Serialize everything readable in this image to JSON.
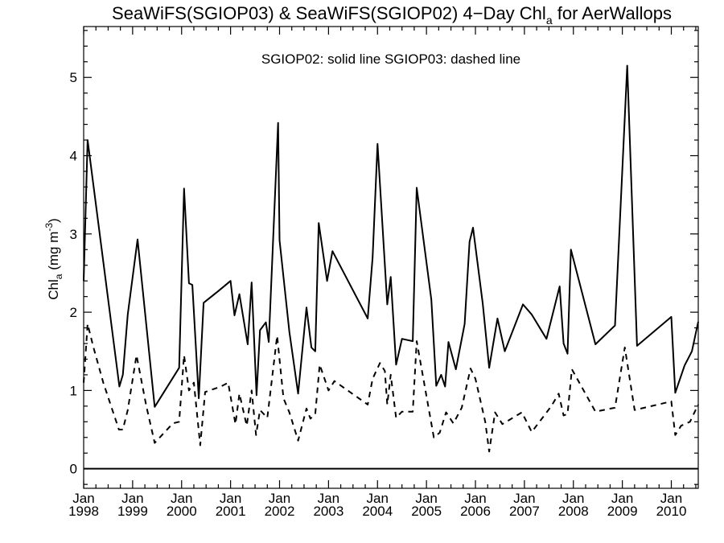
{
  "chart_data": {
    "type": "line",
    "title": {
      "main": "SeaWiFS(SGIOP03) & SeaWiFS(SGIOP02) 4−Day Chl",
      "sub": "a",
      "tail": " for AerWallops"
    },
    "legend_text": "SGIOP02: solid line   SGIOP03: dashed line",
    "ylabel": {
      "chl": "Chl",
      "chl_sub": "a",
      "unit_open": " (mg m",
      "unit_sup": "-3",
      "unit_close": ")"
    },
    "xlim": [
      1998.0,
      2010.55
    ],
    "ylim": [
      -0.25,
      5.65
    ],
    "y_ticks": [
      0,
      1,
      2,
      3,
      4,
      5
    ],
    "x_ticks": [
      {
        "value": 1998,
        "month": "Jan",
        "year": "1998"
      },
      {
        "value": 1999,
        "month": "Jan",
        "year": "1999"
      },
      {
        "value": 2000,
        "month": "Jan",
        "year": "2000"
      },
      {
        "value": 2001,
        "month": "Jan",
        "year": "2001"
      },
      {
        "value": 2002,
        "month": "Jan",
        "year": "2002"
      },
      {
        "value": 2003,
        "month": "Jan",
        "year": "2003"
      },
      {
        "value": 2004,
        "month": "Jan",
        "year": "2004"
      },
      {
        "value": 2005,
        "month": "Jan",
        "year": "2005"
      },
      {
        "value": 2006,
        "month": "Jan",
        "year": "2006"
      },
      {
        "value": 2007,
        "month": "Jan",
        "year": "2007"
      },
      {
        "value": 2008,
        "month": "Jan",
        "year": "2008"
      },
      {
        "value": 2009,
        "month": "Jan",
        "year": "2009"
      },
      {
        "value": 2010,
        "month": "Jan",
        "year": "2010"
      }
    ],
    "reference_line": 0,
    "series": [
      {
        "style": "solid",
        "points": [
          [
            1998.0,
            2.4
          ],
          [
            1998.08,
            4.2
          ],
          [
            1998.73,
            1.05
          ],
          [
            1998.8,
            1.2
          ],
          [
            1998.9,
            1.97
          ],
          [
            1999.1,
            2.93
          ],
          [
            1999.45,
            0.79
          ],
          [
            1999.95,
            1.29
          ],
          [
            2000.05,
            3.58
          ],
          [
            2000.15,
            2.37
          ],
          [
            2000.22,
            2.35
          ],
          [
            2000.35,
            0.9
          ],
          [
            2000.45,
            2.12
          ],
          [
            2000.75,
            2.27
          ],
          [
            2001.0,
            2.4
          ],
          [
            2001.08,
            1.96
          ],
          [
            2001.18,
            2.23
          ],
          [
            2001.35,
            1.59
          ],
          [
            2001.43,
            2.38
          ],
          [
            2001.53,
            0.94
          ],
          [
            2001.6,
            1.77
          ],
          [
            2001.72,
            1.87
          ],
          [
            2001.78,
            1.62
          ],
          [
            2001.97,
            4.42
          ],
          [
            2002.0,
            2.92
          ],
          [
            2002.2,
            1.75
          ],
          [
            2002.38,
            0.96
          ],
          [
            2002.55,
            2.06
          ],
          [
            2002.65,
            1.55
          ],
          [
            2002.73,
            1.5
          ],
          [
            2002.8,
            3.14
          ],
          [
            2002.97,
            2.4
          ],
          [
            2003.08,
            2.78
          ],
          [
            2003.8,
            1.92
          ],
          [
            2003.9,
            2.7
          ],
          [
            2004.0,
            4.15
          ],
          [
            2004.2,
            2.1
          ],
          [
            2004.27,
            2.45
          ],
          [
            2004.38,
            1.33
          ],
          [
            2004.5,
            1.66
          ],
          [
            2004.72,
            1.63
          ],
          [
            2004.8,
            3.59
          ],
          [
            2005.1,
            2.16
          ],
          [
            2005.2,
            1.06
          ],
          [
            2005.3,
            1.2
          ],
          [
            2005.38,
            1.05
          ],
          [
            2005.45,
            1.62
          ],
          [
            2005.6,
            1.27
          ],
          [
            2005.78,
            1.85
          ],
          [
            2005.88,
            2.9
          ],
          [
            2005.95,
            3.08
          ],
          [
            2006.15,
            2.11
          ],
          [
            2006.28,
            1.29
          ],
          [
            2006.45,
            1.92
          ],
          [
            2006.6,
            1.5
          ],
          [
            2006.97,
            2.1
          ],
          [
            2007.15,
            1.97
          ],
          [
            2007.45,
            1.66
          ],
          [
            2007.72,
            2.33
          ],
          [
            2007.8,
            1.6
          ],
          [
            2007.88,
            1.47
          ],
          [
            2007.95,
            2.8
          ],
          [
            2008.45,
            1.59
          ],
          [
            2008.85,
            1.83
          ],
          [
            2009.1,
            5.15
          ],
          [
            2009.3,
            1.57
          ],
          [
            2010.0,
            1.94
          ],
          [
            2010.08,
            0.97
          ],
          [
            2010.27,
            1.32
          ],
          [
            2010.42,
            1.5
          ],
          [
            2010.55,
            1.88
          ]
        ]
      },
      {
        "style": "dashed",
        "points": [
          [
            1998.0,
            1.1
          ],
          [
            1998.08,
            1.85
          ],
          [
            1998.2,
            1.55
          ],
          [
            1998.4,
            1.1
          ],
          [
            1998.72,
            0.5
          ],
          [
            1998.8,
            0.5
          ],
          [
            1998.9,
            0.75
          ],
          [
            1999.08,
            1.45
          ],
          [
            1999.28,
            0.8
          ],
          [
            1999.45,
            0.33
          ],
          [
            1999.82,
            0.58
          ],
          [
            1999.95,
            0.6
          ],
          [
            2000.05,
            1.45
          ],
          [
            2000.15,
            1.0
          ],
          [
            2000.25,
            1.1
          ],
          [
            2000.38,
            0.3
          ],
          [
            2000.48,
            0.98
          ],
          [
            2000.8,
            1.05
          ],
          [
            2000.95,
            1.1
          ],
          [
            2001.1,
            0.57
          ],
          [
            2001.18,
            0.96
          ],
          [
            2001.33,
            0.55
          ],
          [
            2001.43,
            1.0
          ],
          [
            2001.52,
            0.43
          ],
          [
            2001.6,
            0.75
          ],
          [
            2001.75,
            0.65
          ],
          [
            2001.95,
            1.7
          ],
          [
            2002.08,
            0.9
          ],
          [
            2002.2,
            0.72
          ],
          [
            2002.38,
            0.36
          ],
          [
            2002.55,
            0.77
          ],
          [
            2002.63,
            0.64
          ],
          [
            2002.73,
            0.7
          ],
          [
            2002.82,
            1.33
          ],
          [
            2003.0,
            1.0
          ],
          [
            2003.12,
            1.12
          ],
          [
            2003.8,
            0.82
          ],
          [
            2003.9,
            1.15
          ],
          [
            2004.05,
            1.35
          ],
          [
            2004.15,
            1.25
          ],
          [
            2004.2,
            0.82
          ],
          [
            2004.27,
            1.2
          ],
          [
            2004.38,
            0.65
          ],
          [
            2004.5,
            0.73
          ],
          [
            2004.72,
            0.73
          ],
          [
            2004.8,
            1.63
          ],
          [
            2005.0,
            0.93
          ],
          [
            2005.15,
            0.4
          ],
          [
            2005.27,
            0.46
          ],
          [
            2005.4,
            0.72
          ],
          [
            2005.55,
            0.58
          ],
          [
            2005.72,
            0.78
          ],
          [
            2005.9,
            1.28
          ],
          [
            2006.0,
            1.15
          ],
          [
            2006.2,
            0.6
          ],
          [
            2006.28,
            0.22
          ],
          [
            2006.4,
            0.72
          ],
          [
            2006.55,
            0.57
          ],
          [
            2006.95,
            0.72
          ],
          [
            2007.15,
            0.47
          ],
          [
            2007.55,
            0.8
          ],
          [
            2007.7,
            0.96
          ],
          [
            2007.8,
            0.68
          ],
          [
            2007.88,
            0.7
          ],
          [
            2007.97,
            1.27
          ],
          [
            2008.45,
            0.73
          ],
          [
            2008.85,
            0.78
          ],
          [
            2009.05,
            1.55
          ],
          [
            2009.25,
            0.75
          ],
          [
            2010.0,
            0.86
          ],
          [
            2010.08,
            0.43
          ],
          [
            2010.2,
            0.55
          ],
          [
            2010.38,
            0.6
          ],
          [
            2010.55,
            0.82
          ]
        ]
      }
    ]
  }
}
